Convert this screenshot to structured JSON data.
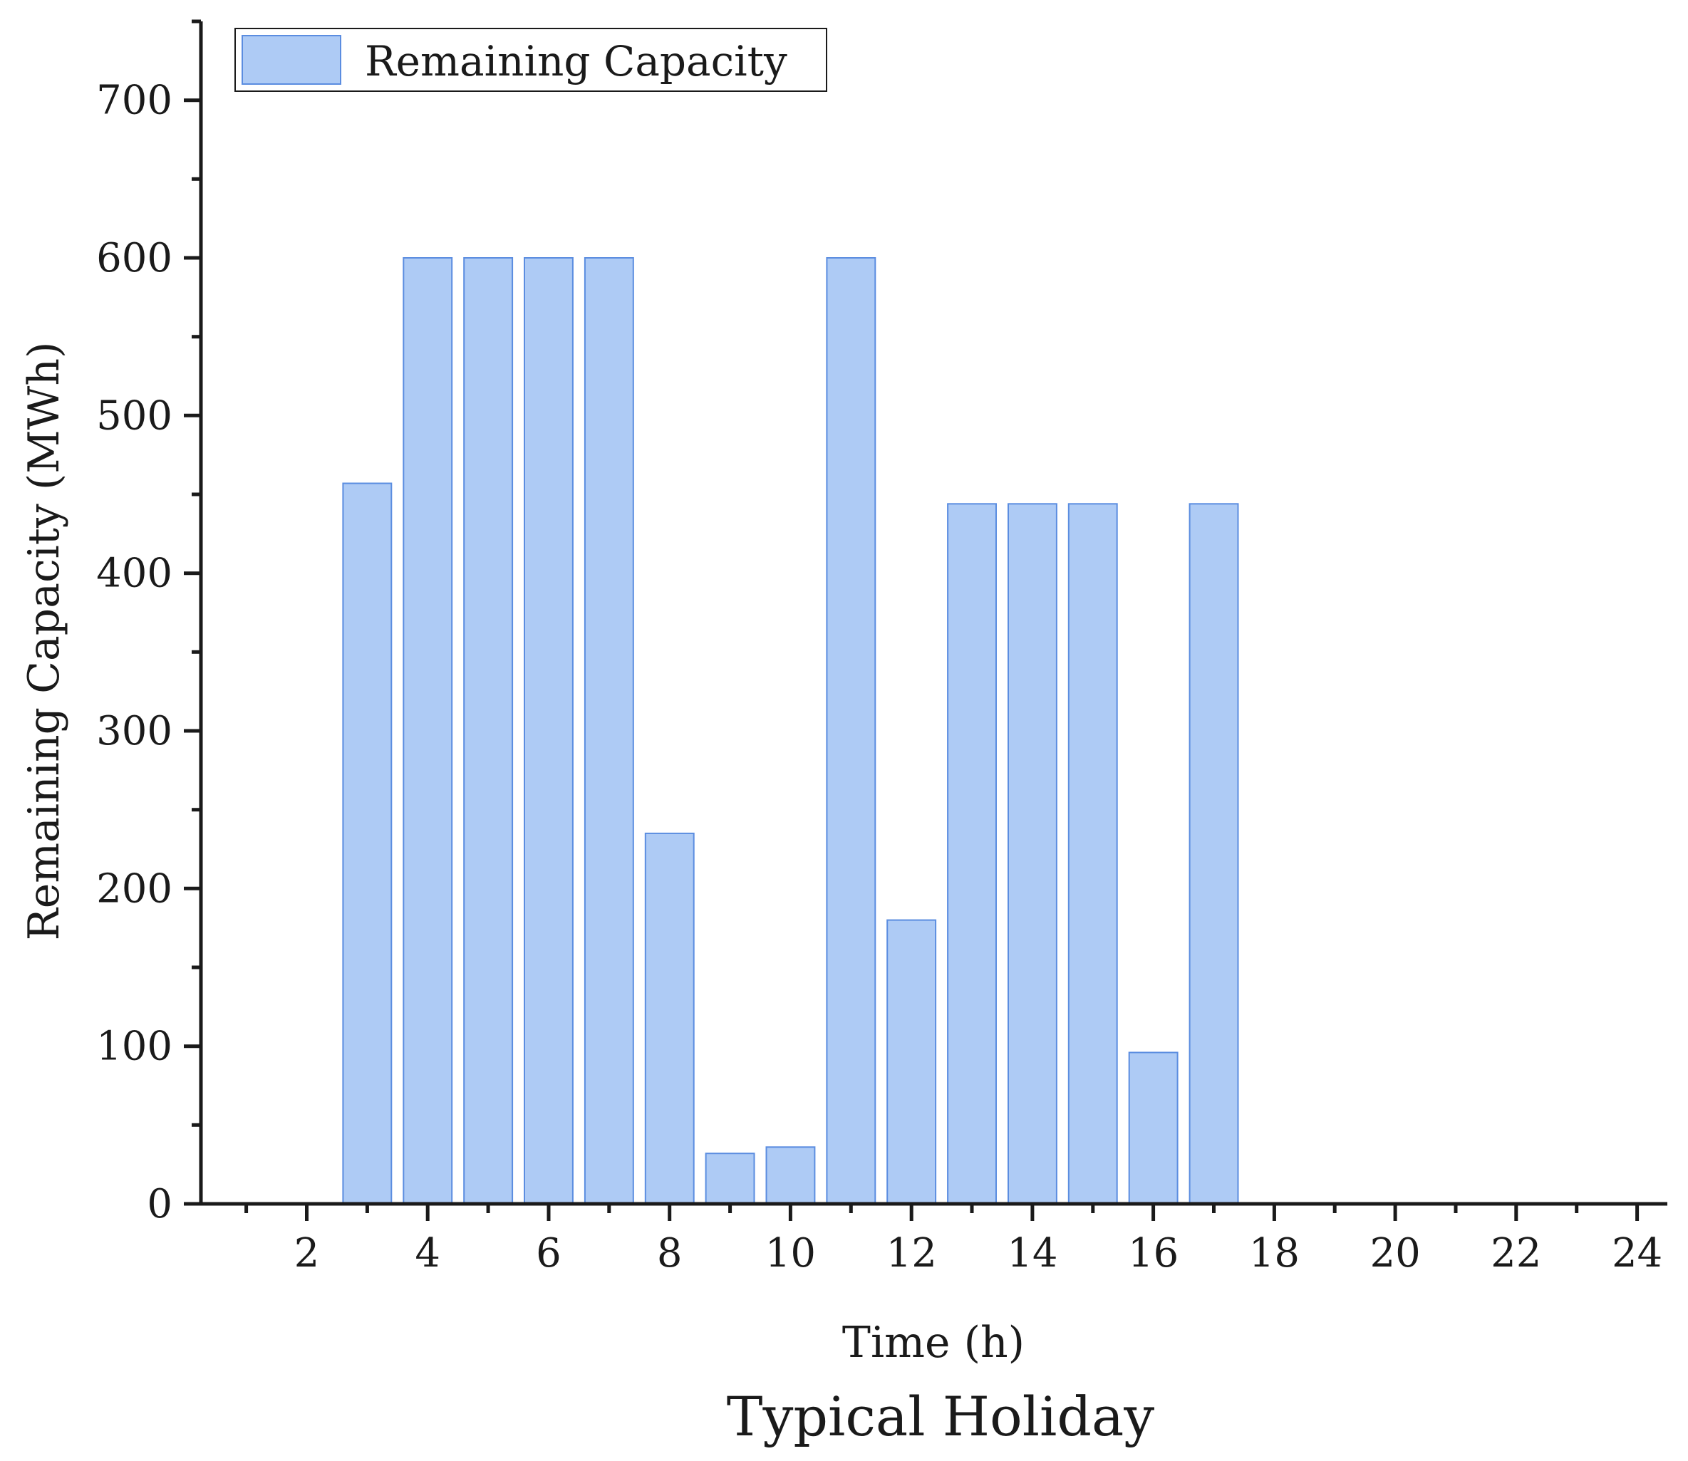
{
  "chart_data": {
    "type": "bar",
    "x": [
      1,
      2,
      3,
      4,
      5,
      6,
      7,
      8,
      9,
      10,
      11,
      12,
      13,
      14,
      15,
      16,
      17,
      18,
      19,
      20,
      21,
      22,
      23,
      24
    ],
    "series": [
      {
        "name": "Remaining Capacity",
        "values": [
          0,
          0,
          457,
          600,
          600,
          600,
          600,
          235,
          32,
          36,
          600,
          180,
          444,
          444,
          444,
          96,
          444,
          0,
          0,
          0,
          0,
          0,
          0,
          0
        ]
      }
    ],
    "xlabel": "Time (h)",
    "ylabel": "Remaining Capacity (MWh)",
    "caption": "Typical Holiday",
    "xlim": [
      0.25,
      24.5
    ],
    "ylim": [
      0,
      750
    ],
    "xticks": [
      2,
      4,
      6,
      8,
      10,
      12,
      14,
      16,
      18,
      20,
      22,
      24
    ],
    "yticks": [
      0,
      100,
      200,
      300,
      400,
      500,
      600,
      700
    ],
    "legend": {
      "position": "top-left",
      "label": "Remaining Capacity"
    },
    "grid": false,
    "colors": {
      "bar_fill": "#aecbf5",
      "bar_stroke": "#5b8de0",
      "axis": "#1a1a1a"
    }
  }
}
